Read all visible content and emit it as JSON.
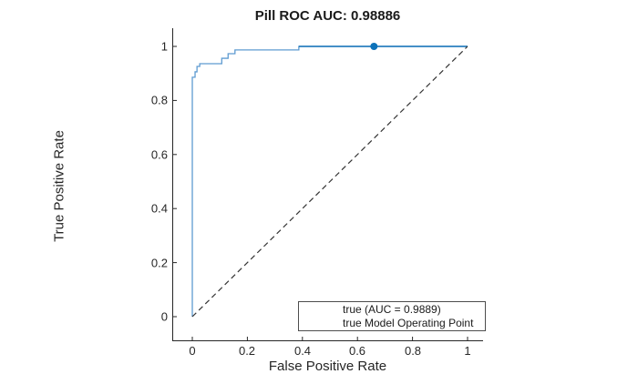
{
  "chart_data": {
    "type": "line",
    "title": "Pill ROC AUC: 0.98886",
    "xlabel": "False Positive Rate",
    "ylabel": "True Positive Rate",
    "auc_title_value": 0.98886,
    "auc_legend_value": 0.9889,
    "xlim": [
      -0.073,
      1.056
    ],
    "ylim": [
      -0.088,
      1.067
    ],
    "grid": false,
    "x_ticks": [
      0,
      0.2,
      0.4,
      0.6,
      0.8,
      1
    ],
    "x_tick_labels": [
      "0",
      "0.2",
      "0.4",
      "0.6",
      "0.8",
      "1"
    ],
    "y_ticks": [
      0,
      0.2,
      0.4,
      0.6,
      0.8,
      1
    ],
    "y_tick_labels": [
      "0",
      "0.2",
      "0.4",
      "0.6",
      "0.8",
      "1"
    ],
    "axis_color": "#262626",
    "legend": {
      "position": "inside-lower-right",
      "entries": [
        {
          "label": "true (AUC = 0.9889)",
          "marker": "line",
          "color": "#8FBEE2"
        },
        {
          "label": "true Model Operating Point",
          "marker": "circle",
          "color": "#0D72B9"
        }
      ]
    },
    "series": [
      {
        "name": "roc-curve-true",
        "type": "line",
        "color": "#5E9BD1",
        "width": 1.3,
        "dash": "",
        "points": [
          [
            0,
            0
          ],
          [
            0,
            0.886
          ],
          [
            0.01,
            0.886
          ],
          [
            0.01,
            0.906
          ],
          [
            0.017,
            0.906
          ],
          [
            0.017,
            0.926
          ],
          [
            0.027,
            0.926
          ],
          [
            0.027,
            0.936
          ],
          [
            0.107,
            0.936
          ],
          [
            0.107,
            0.956
          ],
          [
            0.13,
            0.956
          ],
          [
            0.13,
            0.973
          ],
          [
            0.155,
            0.973
          ],
          [
            0.155,
            0.987
          ],
          [
            0.387,
            0.987
          ],
          [
            0.387,
            1.0
          ],
          [
            1.0,
            1.0
          ]
        ]
      },
      {
        "name": "roc-curve-top-segment",
        "type": "line",
        "color": "#1572B8",
        "width": 1.6,
        "dash": "",
        "points": [
          [
            0.387,
            1.0
          ],
          [
            1.0,
            1.0
          ]
        ]
      },
      {
        "name": "chance-diagonal",
        "type": "line",
        "color": "#333333",
        "width": 1.2,
        "dash": "6 4",
        "points": [
          [
            0,
            0
          ],
          [
            1,
            1
          ]
        ]
      },
      {
        "name": "model-operating-point",
        "type": "scatter",
        "color": "#0D72B9",
        "size": 4,
        "points": [
          [
            0.66,
            1.0
          ]
        ]
      }
    ]
  }
}
